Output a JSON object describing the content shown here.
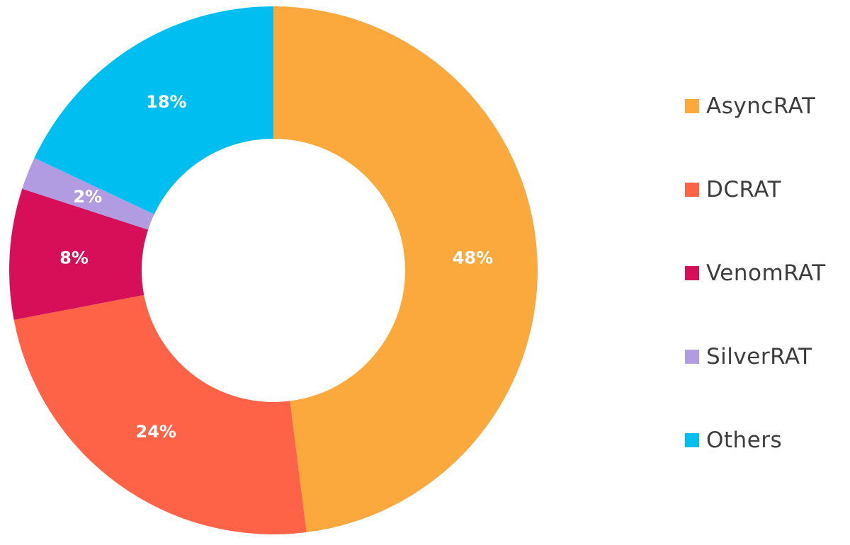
{
  "chart_data": {
    "type": "pie",
    "variant": "donut",
    "categories": [
      "AsyncRAT",
      "DCRAT",
      "VenomRAT",
      "SilverRAT",
      "Others"
    ],
    "values": [
      48,
      24,
      8,
      2,
      18
    ],
    "value_labels": [
      "48%",
      "24%",
      "8%",
      "2%",
      "18%"
    ],
    "colors": [
      "#FBA93C",
      "#FF6347",
      "#D70F58",
      "#B19CE2",
      "#00BFF0"
    ],
    "legend": {
      "position": "right",
      "entries": [
        "AsyncRAT",
        "DCRAT",
        "VenomRAT",
        "SilverRAT",
        "Others"
      ]
    },
    "title": ""
  }
}
